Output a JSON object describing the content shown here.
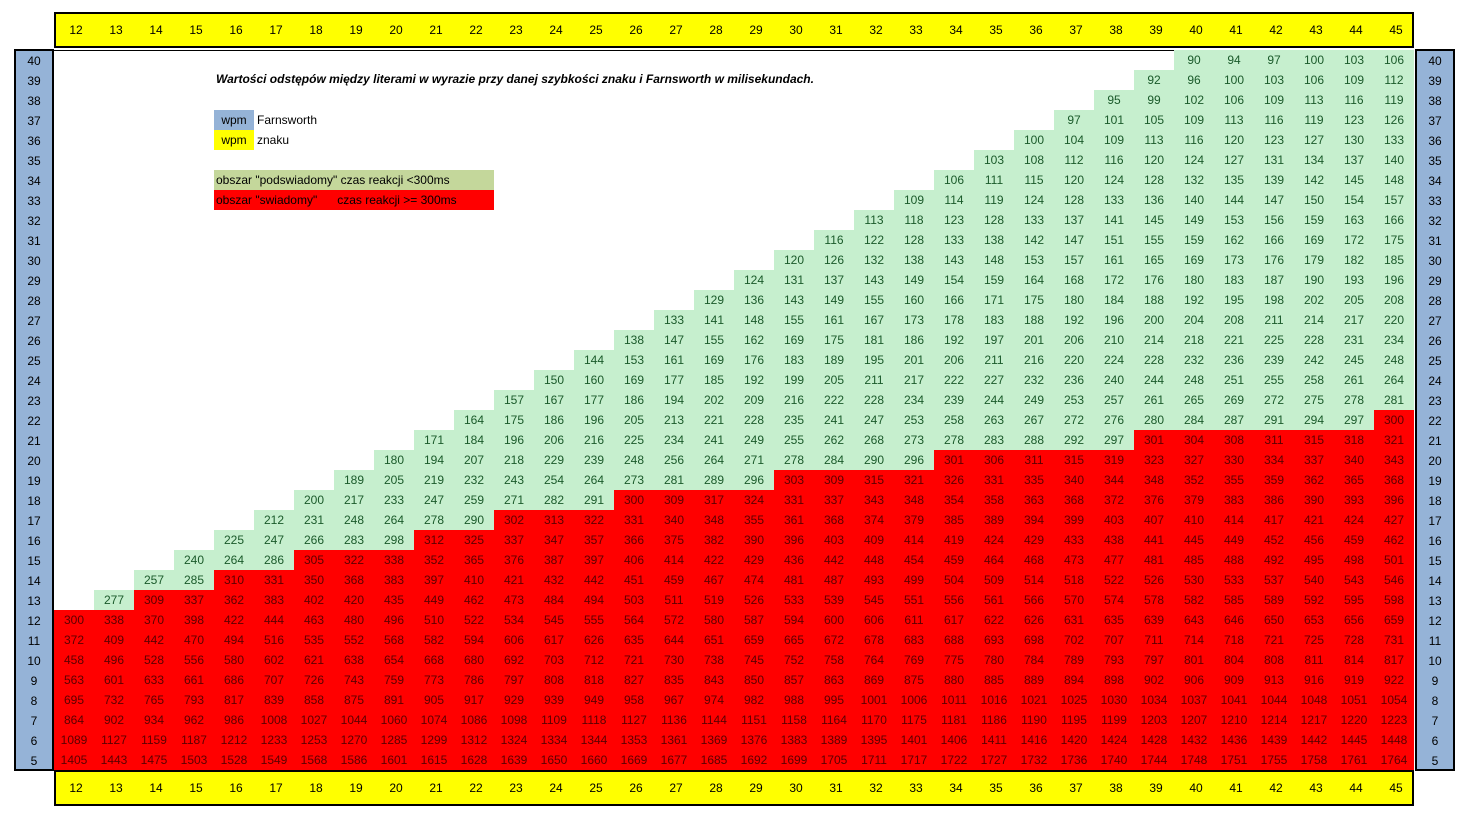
{
  "title": "Wartości odstępów między literami w wyrazie przy danej szybkości znaku i Farnsworth w milisekundach.",
  "legend": {
    "farnsworth": {
      "swatch": "wpm",
      "text": "Farnsworth",
      "color": "#95b3d7"
    },
    "char_speed": {
      "swatch": "wpm",
      "text": "znaku",
      "color": "#ffff00"
    }
  },
  "zones": {
    "subconscious": {
      "label": "obszar \"podswiadomy\" czas reakcji <300ms",
      "color": "#c4d79b"
    },
    "conscious": {
      "label": "obszar \"swiadomy\"      czas reakcji >= 300ms",
      "color": "#ff0000"
    }
  },
  "colors": {
    "green_cell": "#c6efce",
    "red_cell": "#ff0000",
    "axis_yellow": "#ffff00",
    "axis_blue": "#95b3d7"
  },
  "columns": [
    12,
    13,
    14,
    15,
    16,
    17,
    18,
    19,
    20,
    21,
    22,
    23,
    24,
    25,
    26,
    27,
    28,
    29,
    30,
    31,
    32,
    33,
    34,
    35,
    36,
    37,
    38,
    39,
    40,
    41,
    42,
    43,
    44,
    45
  ],
  "rows": [
    40,
    39,
    38,
    37,
    36,
    35,
    34,
    33,
    32,
    31,
    30,
    29,
    28,
    27,
    26,
    25,
    24,
    23,
    22,
    21,
    20,
    19,
    18,
    17,
    16,
    15,
    14,
    13,
    12,
    11,
    10,
    9,
    8,
    7,
    6,
    5
  ],
  "threshold_ms": 300,
  "table": [
    [
      null,
      null,
      null,
      null,
      null,
      null,
      null,
      null,
      null,
      null,
      null,
      null,
      null,
      null,
      null,
      null,
      null,
      null,
      null,
      null,
      null,
      null,
      null,
      null,
      null,
      null,
      null,
      null,
      90,
      94,
      97,
      100,
      103,
      106
    ],
    [
      null,
      null,
      null,
      null,
      null,
      null,
      null,
      null,
      null,
      null,
      null,
      null,
      null,
      null,
      null,
      null,
      null,
      null,
      null,
      null,
      null,
      null,
      null,
      null,
      null,
      null,
      null,
      92,
      96,
      100,
      103,
      106,
      109,
      112
    ],
    [
      null,
      null,
      null,
      null,
      null,
      null,
      null,
      null,
      null,
      null,
      null,
      null,
      null,
      null,
      null,
      null,
      null,
      null,
      null,
      null,
      null,
      null,
      null,
      null,
      null,
      null,
      95,
      99,
      102,
      106,
      109,
      113,
      116,
      119
    ],
    [
      null,
      null,
      null,
      null,
      null,
      null,
      null,
      null,
      null,
      null,
      null,
      null,
      null,
      null,
      null,
      null,
      null,
      null,
      null,
      null,
      null,
      null,
      null,
      null,
      null,
      97,
      101,
      105,
      109,
      113,
      116,
      119,
      123,
      126
    ],
    [
      null,
      null,
      null,
      null,
      null,
      null,
      null,
      null,
      null,
      null,
      null,
      null,
      null,
      null,
      null,
      null,
      null,
      null,
      null,
      null,
      null,
      null,
      null,
      null,
      100,
      104,
      109,
      113,
      116,
      120,
      123,
      127,
      130,
      133
    ],
    [
      null,
      null,
      null,
      null,
      null,
      null,
      null,
      null,
      null,
      null,
      null,
      null,
      null,
      null,
      null,
      null,
      null,
      null,
      null,
      null,
      null,
      null,
      null,
      103,
      108,
      112,
      116,
      120,
      124,
      127,
      131,
      134,
      137,
      140
    ],
    [
      null,
      null,
      null,
      null,
      null,
      null,
      null,
      null,
      null,
      null,
      null,
      null,
      null,
      null,
      null,
      null,
      null,
      null,
      null,
      null,
      null,
      null,
      106,
      111,
      115,
      120,
      124,
      128,
      132,
      135,
      139,
      142,
      145,
      148
    ],
    [
      null,
      null,
      null,
      null,
      null,
      null,
      null,
      null,
      null,
      null,
      null,
      null,
      null,
      null,
      null,
      null,
      null,
      null,
      null,
      null,
      null,
      109,
      114,
      119,
      124,
      128,
      133,
      136,
      140,
      144,
      147,
      150,
      154,
      157
    ],
    [
      null,
      null,
      null,
      null,
      null,
      null,
      null,
      null,
      null,
      null,
      null,
      null,
      null,
      null,
      null,
      null,
      null,
      null,
      null,
      null,
      113,
      118,
      123,
      128,
      133,
      137,
      141,
      145,
      149,
      153,
      156,
      159,
      163,
      166
    ],
    [
      null,
      null,
      null,
      null,
      null,
      null,
      null,
      null,
      null,
      null,
      null,
      null,
      null,
      null,
      null,
      null,
      null,
      null,
      null,
      116,
      122,
      128,
      133,
      138,
      142,
      147,
      151,
      155,
      159,
      162,
      166,
      169,
      172,
      175
    ],
    [
      null,
      null,
      null,
      null,
      null,
      null,
      null,
      null,
      null,
      null,
      null,
      null,
      null,
      null,
      null,
      null,
      null,
      null,
      120,
      126,
      132,
      138,
      143,
      148,
      153,
      157,
      161,
      165,
      169,
      173,
      176,
      179,
      182,
      185
    ],
    [
      null,
      null,
      null,
      null,
      null,
      null,
      null,
      null,
      null,
      null,
      null,
      null,
      null,
      null,
      null,
      null,
      null,
      124,
      131,
      137,
      143,
      149,
      154,
      159,
      164,
      168,
      172,
      176,
      180,
      183,
      187,
      190,
      193,
      196
    ],
    [
      null,
      null,
      null,
      null,
      null,
      null,
      null,
      null,
      null,
      null,
      null,
      null,
      null,
      null,
      null,
      null,
      129,
      136,
      143,
      149,
      155,
      160,
      166,
      171,
      175,
      180,
      184,
      188,
      192,
      195,
      198,
      202,
      205,
      208
    ],
    [
      null,
      null,
      null,
      null,
      null,
      null,
      null,
      null,
      null,
      null,
      null,
      null,
      null,
      null,
      null,
      133,
      141,
      148,
      155,
      161,
      167,
      173,
      178,
      183,
      188,
      192,
      196,
      200,
      204,
      208,
      211,
      214,
      217,
      220
    ],
    [
      null,
      null,
      null,
      null,
      null,
      null,
      null,
      null,
      null,
      null,
      null,
      null,
      null,
      null,
      138,
      147,
      155,
      162,
      169,
      175,
      181,
      186,
      192,
      197,
      201,
      206,
      210,
      214,
      218,
      221,
      225,
      228,
      231,
      234
    ],
    [
      null,
      null,
      null,
      null,
      null,
      null,
      null,
      null,
      null,
      null,
      null,
      null,
      null,
      144,
      153,
      161,
      169,
      176,
      183,
      189,
      195,
      201,
      206,
      211,
      216,
      220,
      224,
      228,
      232,
      236,
      239,
      242,
      245,
      248
    ],
    [
      null,
      null,
      null,
      null,
      null,
      null,
      null,
      null,
      null,
      null,
      null,
      null,
      150,
      160,
      169,
      177,
      185,
      192,
      199,
      205,
      211,
      217,
      222,
      227,
      232,
      236,
      240,
      244,
      248,
      251,
      255,
      258,
      261,
      264
    ],
    [
      null,
      null,
      null,
      null,
      null,
      null,
      null,
      null,
      null,
      null,
      null,
      157,
      167,
      177,
      186,
      194,
      202,
      209,
      216,
      222,
      228,
      234,
      239,
      244,
      249,
      253,
      257,
      261,
      265,
      269,
      272,
      275,
      278,
      281
    ],
    [
      null,
      null,
      null,
      null,
      null,
      null,
      null,
      null,
      null,
      null,
      164,
      175,
      186,
      196,
      205,
      213,
      221,
      228,
      235,
      241,
      247,
      253,
      258,
      263,
      267,
      272,
      276,
      280,
      284,
      287,
      291,
      294,
      297,
      300
    ],
    [
      null,
      null,
      null,
      null,
      null,
      null,
      null,
      null,
      null,
      171,
      184,
      196,
      206,
      216,
      225,
      234,
      241,
      249,
      255,
      262,
      268,
      273,
      278,
      283,
      288,
      292,
      297,
      301,
      304,
      308,
      311,
      315,
      318,
      321
    ],
    [
      null,
      null,
      null,
      null,
      null,
      null,
      null,
      null,
      180,
      194,
      207,
      218,
      229,
      239,
      248,
      256,
      264,
      271,
      278,
      284,
      290,
      296,
      301,
      306,
      311,
      315,
      319,
      323,
      327,
      330,
      334,
      337,
      340,
      343
    ],
    [
      null,
      null,
      null,
      null,
      null,
      null,
      null,
      189,
      205,
      219,
      232,
      243,
      254,
      264,
      273,
      281,
      289,
      296,
      303,
      309,
      315,
      321,
      326,
      331,
      335,
      340,
      344,
      348,
      352,
      355,
      359,
      362,
      365,
      368
    ],
    [
      null,
      null,
      null,
      null,
      null,
      null,
      200,
      217,
      233,
      247,
      259,
      271,
      282,
      291,
      300,
      309,
      317,
      324,
      331,
      337,
      343,
      348,
      354,
      358,
      363,
      368,
      372,
      376,
      379,
      383,
      386,
      390,
      393,
      396
    ],
    [
      null,
      null,
      null,
      null,
      null,
      212,
      231,
      248,
      264,
      278,
      290,
      302,
      313,
      322,
      331,
      340,
      348,
      355,
      361,
      368,
      374,
      379,
      385,
      389,
      394,
      399,
      403,
      407,
      410,
      414,
      417,
      421,
      424,
      427
    ],
    [
      null,
      null,
      null,
      null,
      225,
      247,
      266,
      283,
      298,
      312,
      325,
      337,
      347,
      357,
      366,
      375,
      382,
      390,
      396,
      403,
      409,
      414,
      419,
      424,
      429,
      433,
      438,
      441,
      445,
      449,
      452,
      456,
      459,
      462
    ],
    [
      null,
      null,
      null,
      240,
      264,
      286,
      305,
      322,
      338,
      352,
      365,
      376,
      387,
      397,
      406,
      414,
      422,
      429,
      436,
      442,
      448,
      454,
      459,
      464,
      468,
      473,
      477,
      481,
      485,
      488,
      492,
      495,
      498,
      501
    ],
    [
      null,
      null,
      257,
      285,
      310,
      331,
      350,
      368,
      383,
      397,
      410,
      421,
      432,
      442,
      451,
      459,
      467,
      474,
      481,
      487,
      493,
      499,
      504,
      509,
      514,
      518,
      522,
      526,
      530,
      533,
      537,
      540,
      543,
      546
    ],
    [
      null,
      277,
      309,
      337,
      362,
      383,
      402,
      420,
      435,
      449,
      462,
      473,
      484,
      494,
      503,
      511,
      519,
      526,
      533,
      539,
      545,
      551,
      556,
      561,
      566,
      570,
      574,
      578,
      582,
      585,
      589,
      592,
      595,
      598
    ],
    [
      300,
      338,
      370,
      398,
      422,
      444,
      463,
      480,
      496,
      510,
      522,
      534,
      545,
      555,
      564,
      572,
      580,
      587,
      594,
      600,
      606,
      611,
      617,
      622,
      626,
      631,
      635,
      639,
      643,
      646,
      650,
      653,
      656,
      659
    ],
    [
      372,
      409,
      442,
      470,
      494,
      516,
      535,
      552,
      568,
      582,
      594,
      606,
      617,
      626,
      635,
      644,
      651,
      659,
      665,
      672,
      678,
      683,
      688,
      693,
      698,
      702,
      707,
      711,
      714,
      718,
      721,
      725,
      728,
      731
    ],
    [
      458,
      496,
      528,
      556,
      580,
      602,
      621,
      638,
      654,
      668,
      680,
      692,
      703,
      712,
      721,
      730,
      738,
      745,
      752,
      758,
      764,
      769,
      775,
      780,
      784,
      789,
      793,
      797,
      801,
      804,
      808,
      811,
      814,
      817
    ],
    [
      563,
      601,
      633,
      661,
      686,
      707,
      726,
      743,
      759,
      773,
      786,
      797,
      808,
      818,
      827,
      835,
      843,
      850,
      857,
      863,
      869,
      875,
      880,
      885,
      889,
      894,
      898,
      902,
      906,
      909,
      913,
      916,
      919,
      922
    ],
    [
      695,
      732,
      765,
      793,
      817,
      839,
      858,
      875,
      891,
      905,
      917,
      929,
      939,
      949,
      958,
      967,
      974,
      982,
      988,
      995,
      1001,
      1006,
      1011,
      1016,
      1021,
      1025,
      1030,
      1034,
      1037,
      1041,
      1044,
      1048,
      1051,
      1054
    ],
    [
      864,
      902,
      934,
      962,
      986,
      1008,
      1027,
      1044,
      1060,
      1074,
      1086,
      1098,
      1109,
      1118,
      1127,
      1136,
      1144,
      1151,
      1158,
      1164,
      1170,
      1175,
      1181,
      1186,
      1190,
      1195,
      1199,
      1203,
      1207,
      1210,
      1214,
      1217,
      1220,
      1223
    ],
    [
      1089,
      1127,
      1159,
      1187,
      1212,
      1233,
      1253,
      1270,
      1285,
      1299,
      1312,
      1324,
      1334,
      1344,
      1353,
      1361,
      1369,
      1376,
      1383,
      1389,
      1395,
      1401,
      1406,
      1411,
      1416,
      1420,
      1424,
      1428,
      1432,
      1436,
      1439,
      1442,
      1445,
      1448
    ],
    [
      1405,
      1443,
      1475,
      1503,
      1528,
      1549,
      1568,
      1586,
      1601,
      1615,
      1628,
      1639,
      1650,
      1660,
      1669,
      1677,
      1685,
      1692,
      1699,
      1705,
      1711,
      1717,
      1722,
      1727,
      1732,
      1736,
      1740,
      1744,
      1748,
      1751,
      1755,
      1758,
      1761,
      1764
    ]
  ]
}
